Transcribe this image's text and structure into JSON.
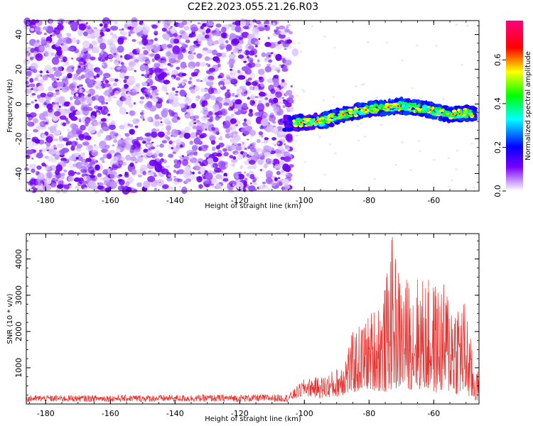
{
  "title": "C2E2.2023.055.21.26.R03",
  "chart_data": [
    {
      "type": "heatmap",
      "title": "C2E2.2023.055.21.26.R03",
      "xlabel": "Height of straight line (km)",
      "ylabel": "Frequency (Hz)",
      "xlim": [
        -186,
        -46
      ],
      "ylim": [
        -50,
        48
      ],
      "xticks": [
        -180,
        -160,
        -140,
        -120,
        -100,
        -80,
        -60
      ],
      "yticks": [
        -40,
        -20,
        0,
        20,
        40
      ],
      "noise_region_km": [
        -186,
        -104
      ],
      "signal_band": {
        "x_start": -106,
        "x_end": -47,
        "center_hz": [
          {
            "x": -106,
            "y": -11
          },
          {
            "x": -95,
            "y": -10
          },
          {
            "x": -88,
            "y": -6
          },
          {
            "x": -80,
            "y": -3
          },
          {
            "x": -70,
            "y": -1
          },
          {
            "x": -62,
            "y": -3
          },
          {
            "x": -55,
            "y": -6
          },
          {
            "x": -47,
            "y": -5
          }
        ],
        "half_width_hz": 4
      },
      "colorbar": {
        "label": "Normalized spectral amplitude",
        "range": [
          0.0,
          0.78
        ],
        "ticks": [
          0.0,
          0.2,
          0.4,
          0.6
        ]
      }
    },
    {
      "type": "line",
      "xlabel": "Height of straight line (km)",
      "ylabel": "SNR (10 * v/v)",
      "xlim": [
        -186,
        -46
      ],
      "ylim": [
        0,
        4700
      ],
      "xticks": [
        -180,
        -160,
        -140,
        -120,
        -100,
        -80,
        -60
      ],
      "yticks": [
        1000,
        2000,
        3000,
        4000
      ],
      "series": [
        {
          "name": "SNR",
          "color": "#e8322f",
          "envelope": {
            "x": [
              -186,
              -120,
              -105,
              -100,
              -95,
              -90,
              -85,
              -80,
              -75,
              -73,
              -70,
              -65,
              -60,
              -55,
              -50,
              -48,
              -46
            ],
            "upper": [
              240,
              260,
              270,
              700,
              750,
              1000,
              2000,
              2500,
              3300,
              4700,
              3500,
              3600,
              3400,
              3300,
              2900,
              1400,
              800
            ],
            "lower": [
              60,
              60,
              60,
              200,
              150,
              200,
              300,
              400,
              300,
              400,
              400,
              400,
              300,
              300,
              200,
              100,
              50
            ]
          }
        }
      ]
    }
  ],
  "colors": {
    "line": "#e8322f",
    "noise": "#7a00ff"
  }
}
